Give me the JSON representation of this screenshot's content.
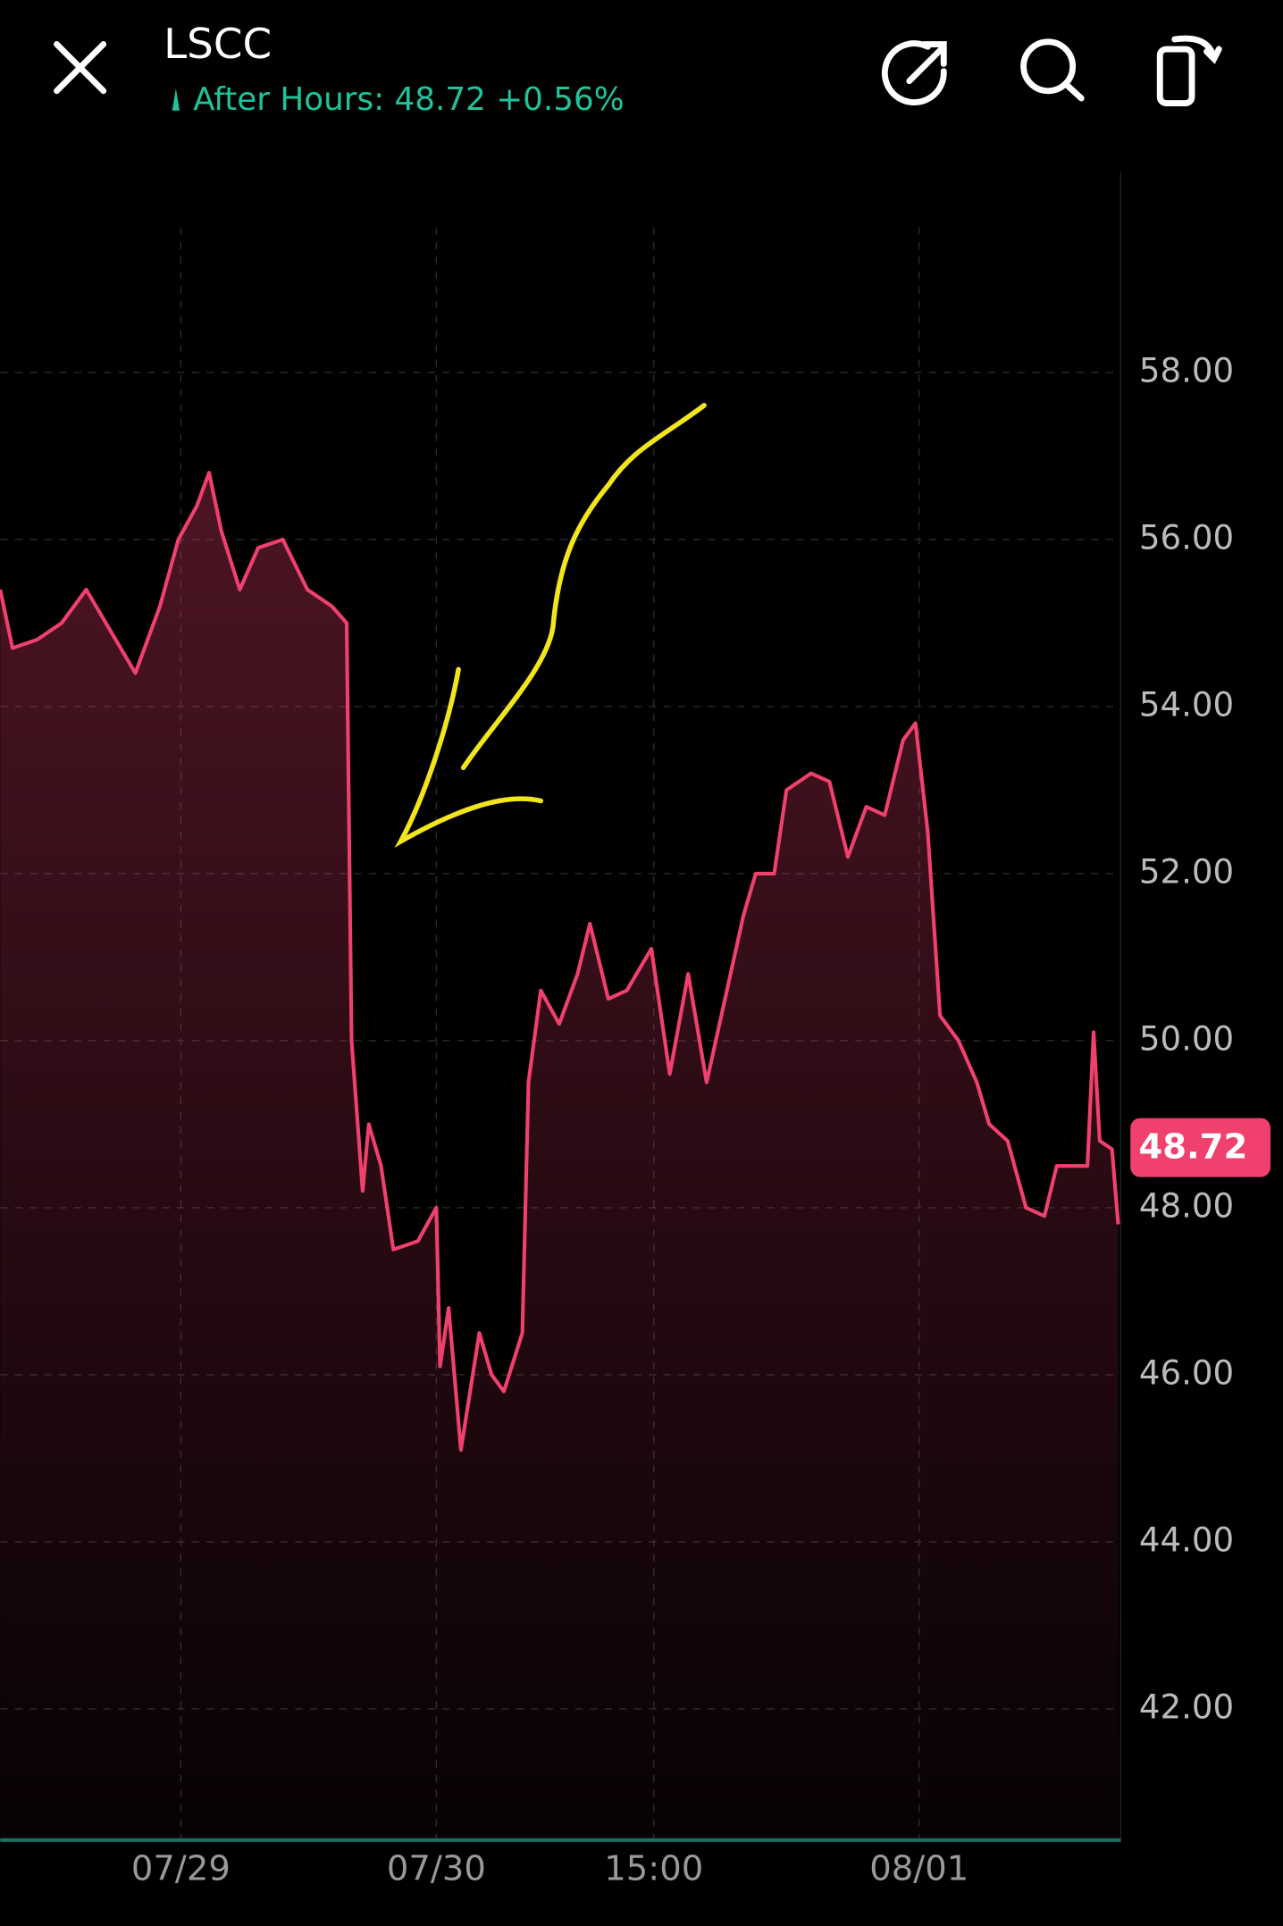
{
  "header": {
    "symbol": "LSCC",
    "after_hours": "After Hours: 48.72 +0.56%"
  },
  "chart_data": {
    "type": "line",
    "color": "#f0406e",
    "x": [
      0,
      10,
      30,
      50,
      70,
      90,
      110,
      130,
      145,
      160,
      170,
      180,
      195,
      210,
      230,
      250,
      270,
      282,
      286,
      290,
      295,
      300,
      310,
      320,
      340,
      355,
      358,
      365,
      375,
      390,
      400,
      410,
      425,
      430,
      440,
      455,
      470,
      480,
      495,
      510,
      530,
      545,
      560,
      575,
      590,
      605,
      615,
      630,
      640,
      660,
      675,
      690,
      705,
      720,
      735,
      745,
      755,
      765,
      780,
      795,
      805,
      820,
      835,
      850,
      860,
      875,
      885,
      890,
      895,
      905,
      910
    ],
    "values": [
      55.4,
      54.7,
      54.8,
      55.0,
      55.4,
      54.9,
      54.4,
      55.2,
      56.0,
      56.4,
      56.8,
      56.1,
      55.4,
      55.9,
      56.0,
      55.4,
      55.2,
      55.0,
      50.0,
      49.2,
      48.2,
      49.0,
      48.5,
      47.5,
      47.6,
      48.0,
      46.1,
      46.8,
      45.1,
      46.5,
      46.0,
      45.8,
      46.5,
      49.5,
      50.6,
      50.2,
      50.8,
      51.4,
      50.5,
      50.6,
      51.1,
      49.6,
      50.8,
      49.5,
      50.5,
      51.5,
      52.0,
      52.0,
      53.0,
      53.2,
      53.1,
      52.2,
      52.8,
      52.7,
      53.6,
      53.8,
      52.5,
      50.3,
      50.0,
      49.5,
      49.0,
      48.8,
      48.0,
      47.9,
      48.5,
      48.5,
      48.5,
      50.1,
      48.8,
      48.7,
      47.8
    ],
    "xlim": [
      0,
      912
    ],
    "xticks": [
      {
        "value": 147,
        "label": "07/29"
      },
      {
        "value": 355,
        "label": "07/30"
      },
      {
        "value": 532,
        "label": "15:00"
      },
      {
        "value": 748,
        "label": "08/01"
      }
    ],
    "ylim": [
      40.4,
      60.4
    ],
    "yticks": [
      {
        "value": 42,
        "label": "42.00"
      },
      {
        "value": 44,
        "label": "44.00"
      },
      {
        "value": 46,
        "label": "46.00"
      },
      {
        "value": 48,
        "label": "48.00"
      },
      {
        "value": 50,
        "label": "50.00"
      },
      {
        "value": 52,
        "label": "52.00"
      },
      {
        "value": 54,
        "label": "54.00"
      },
      {
        "value": 56,
        "label": "56.00"
      },
      {
        "value": 58,
        "label": "58.00"
      }
    ],
    "current_price": {
      "value": 48.72,
      "label": "48.72"
    },
    "grid": true
  }
}
